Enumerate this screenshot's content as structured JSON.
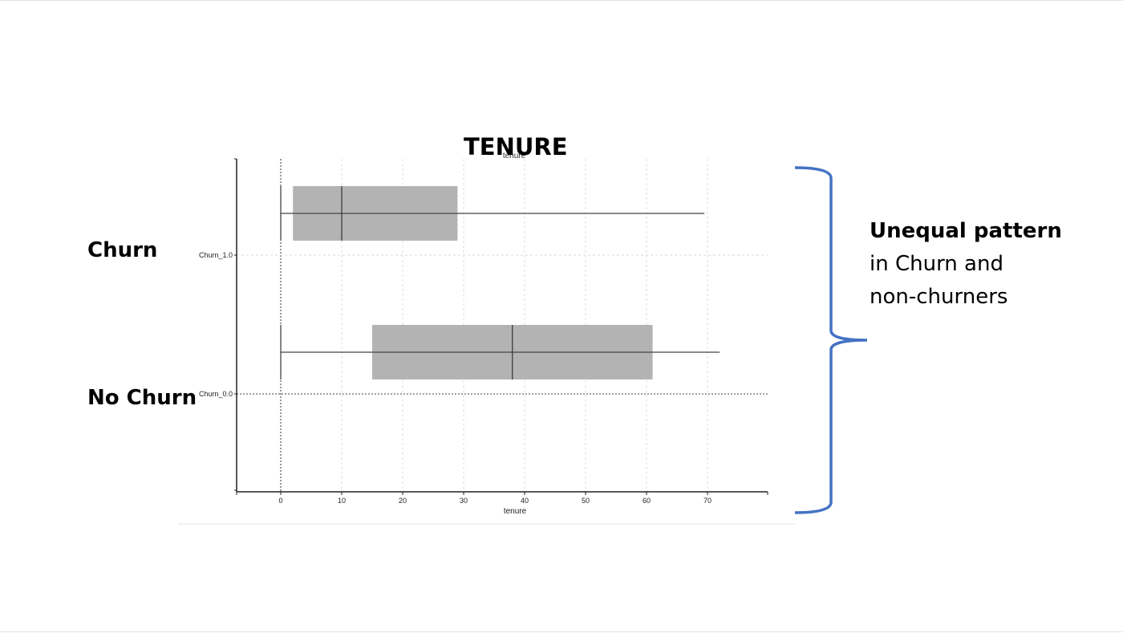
{
  "slide": {
    "title": "TENURE",
    "label_churn": "Churn",
    "label_no_churn": "No Churn",
    "annotation": {
      "line1": "Unequal pattern",
      "line2": "in Churn and",
      "line3": "non-churners"
    },
    "bracket_color": "#4472c4"
  },
  "chart_data": {
    "type": "box",
    "orientation": "horizontal",
    "title": "tenure",
    "xlabel": "tenure",
    "xlim": [
      -7,
      80
    ],
    "xticks": [
      0,
      10,
      20,
      30,
      40,
      50,
      60,
      70
    ],
    "grid": true,
    "box_color": "#b3b3b3",
    "categories": [
      "Churn_1.0",
      "Churn_0.0"
    ],
    "series": [
      {
        "category": "Churn_1.0",
        "min": 0,
        "q1": 2,
        "median": 10,
        "q3": 29,
        "max": 69.5
      },
      {
        "category": "Churn_0.0",
        "min": 0,
        "q1": 15,
        "median": 38,
        "q3": 61,
        "max": 72
      }
    ]
  }
}
